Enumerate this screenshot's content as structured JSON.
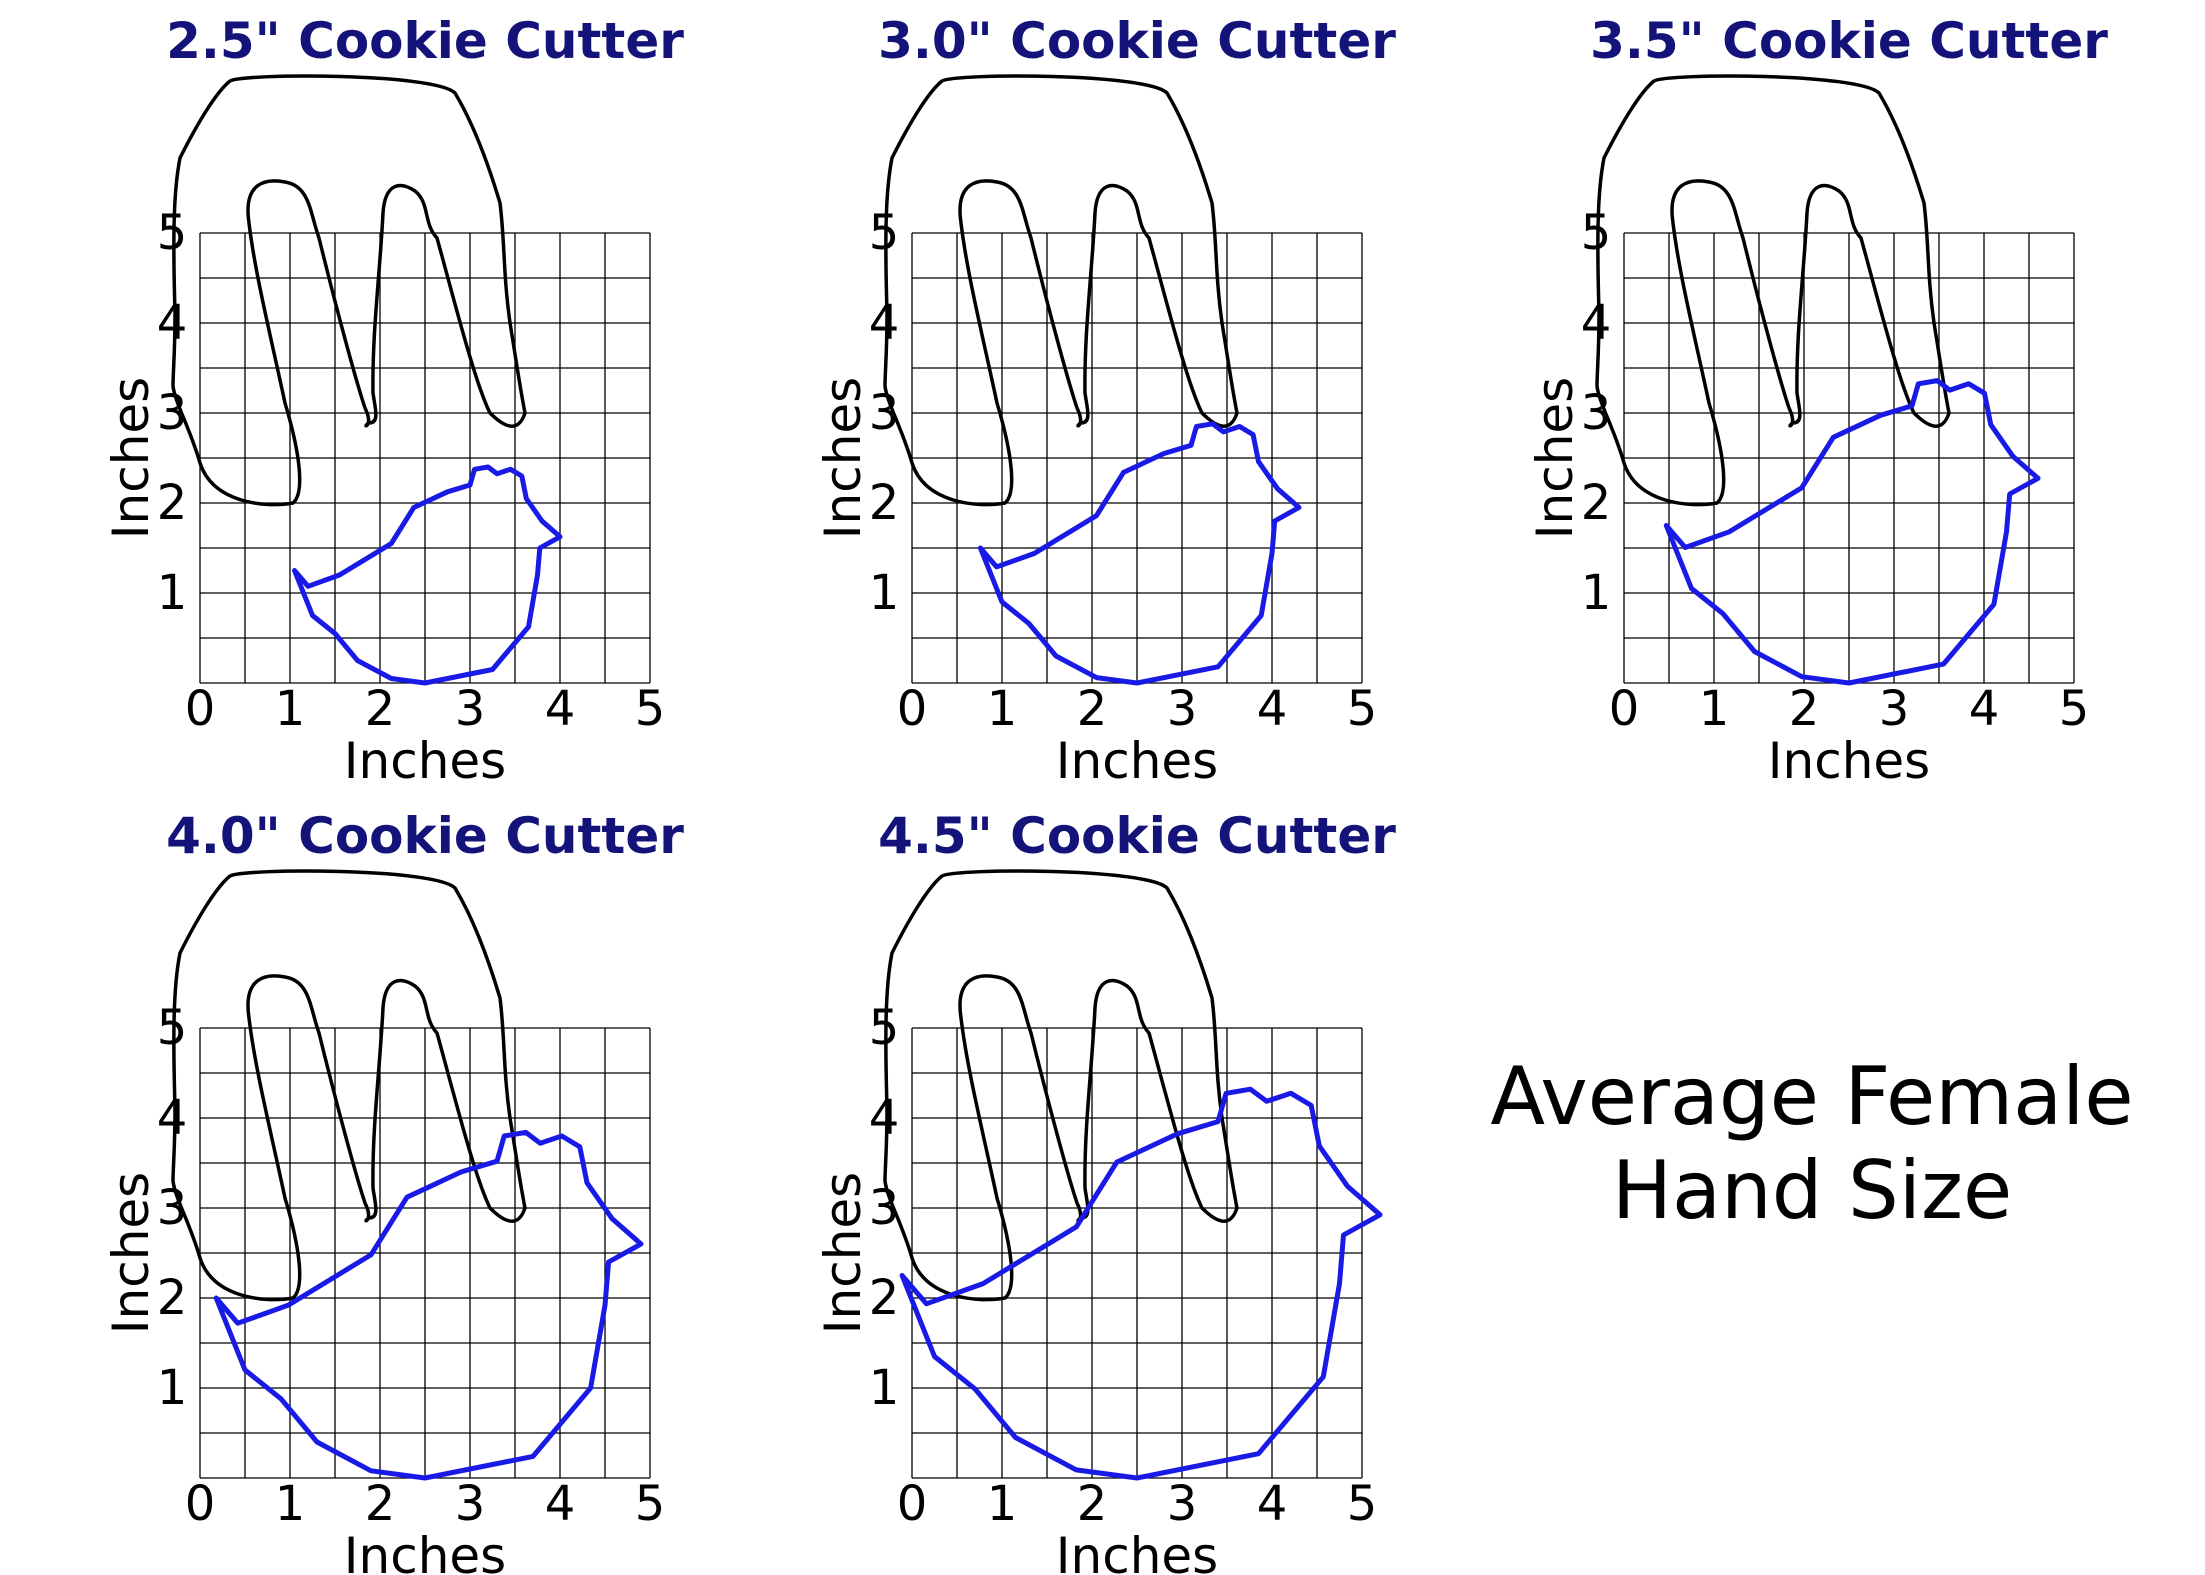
{
  "caption": {
    "line1": "Average Female",
    "line2": "Hand Size"
  },
  "colors": {
    "title": "#13137a",
    "cutter": "#1a1ae6",
    "hand": "#000000",
    "grid": "#000000"
  },
  "panels": [
    {
      "title": "2.5\" Cookie Cutter",
      "cutter_size_in": 2.5,
      "x_label": "Inches",
      "y_label": "Inches",
      "x_ticks": [
        "0",
        "1",
        "2",
        "3",
        "4",
        "5"
      ],
      "y_ticks": [
        "1",
        "2",
        "3",
        "4",
        "5"
      ]
    },
    {
      "title": "3.0\" Cookie Cutter",
      "cutter_size_in": 3.0,
      "x_label": "Inches",
      "y_label": "Inches",
      "x_ticks": [
        "0",
        "1",
        "2",
        "3",
        "4",
        "5"
      ],
      "y_ticks": [
        "1",
        "2",
        "3",
        "4",
        "5"
      ]
    },
    {
      "title": "3.5\" Cookie Cutter",
      "cutter_size_in": 3.5,
      "x_label": "Inches",
      "y_label": "Inches",
      "x_ticks": [
        "0",
        "1",
        "2",
        "3",
        "4",
        "5"
      ],
      "y_ticks": [
        "1",
        "2",
        "3",
        "4",
        "5"
      ]
    },
    {
      "title": "4.0\" Cookie Cutter",
      "cutter_size_in": 4.0,
      "x_label": "Inches",
      "y_label": "Inches",
      "x_ticks": [
        "0",
        "1",
        "2",
        "3",
        "4",
        "5"
      ],
      "y_ticks": [
        "1",
        "2",
        "3",
        "4",
        "5"
      ]
    },
    {
      "title": "4.5\" Cookie Cutter",
      "cutter_size_in": 4.5,
      "x_label": "Inches",
      "y_label": "Inches",
      "x_ticks": [
        "0",
        "1",
        "2",
        "3",
        "4",
        "5"
      ],
      "y_ticks": [
        "1",
        "2",
        "3",
        "4",
        "5"
      ]
    }
  ]
}
